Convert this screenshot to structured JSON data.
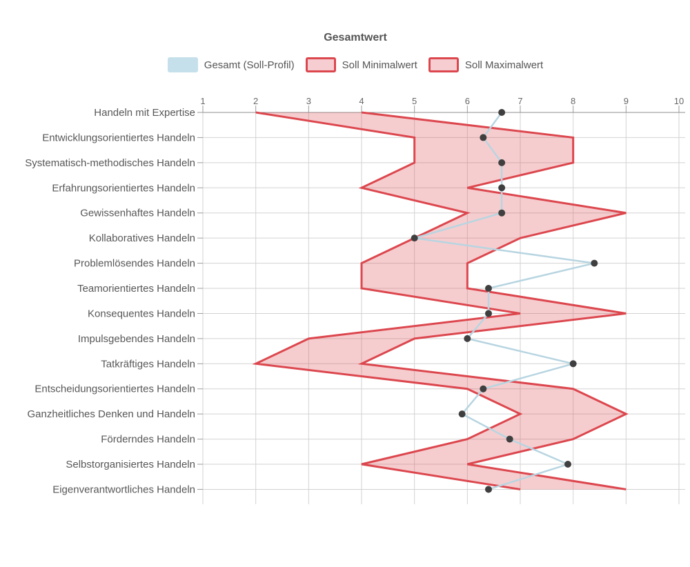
{
  "title": "Gesamtwert",
  "legend": {
    "position": "top",
    "items": [
      {
        "label": "Gesamt (Soll-Profil)",
        "swatch_fill": "#c5e0ea",
        "swatch_border": "none"
      },
      {
        "label": "Soll Minimalwert",
        "swatch_fill": "#f6ced2",
        "swatch_border": "#dc474e"
      },
      {
        "label": "Soll Maximalwert",
        "swatch_fill": "#f6ced2",
        "swatch_border": "#dc474e"
      }
    ]
  },
  "chart_data": {
    "type": "area",
    "subtype": "horizontal-range-band-with-line",
    "title": "Gesamtwert",
    "xlabel": "",
    "ylabel": "",
    "xlim": [
      1,
      10
    ],
    "x_ticks": [
      1,
      2,
      3,
      4,
      5,
      6,
      7,
      8,
      9,
      10
    ],
    "grid": true,
    "legend_position": "top",
    "categories": [
      "Handeln mit Expertise",
      "Entwicklungsorientiertes Handeln",
      "Systematisch-methodisches Handeln",
      "Erfahrungsorientiertes Handeln",
      "Gewissenhaftes Handeln",
      "Kollaboratives Handeln",
      "Problemlösendes Handeln",
      "Teamorientiertes Handeln",
      "Konsequentes Handeln",
      "Impulsgebendes Handeln",
      "Tatkräftiges Handeln",
      "Entscheidungsorientiertes Handeln",
      "Ganzheitliches Denken und Handeln",
      "Förderndes Handeln",
      "Selbstorganisiertes Handeln",
      "Eigenverantwortliches Handeln"
    ],
    "series": [
      {
        "name": "Gesamt (Soll-Profil)",
        "type": "line",
        "color": "#b7d5e1",
        "point_color": "#3f3f3f",
        "values": [
          6.65,
          6.3,
          6.65,
          6.65,
          6.65,
          5.0,
          8.4,
          6.4,
          6.4,
          6.0,
          8.0,
          6.3,
          5.9,
          6.8,
          7.9,
          6.4
        ]
      },
      {
        "name": "Soll Minimalwert",
        "type": "line",
        "color": "#dc474e",
        "values": [
          2,
          5,
          5,
          4,
          6,
          5,
          4,
          4,
          7,
          3,
          2,
          6,
          7,
          6,
          4,
          7
        ]
      },
      {
        "name": "Soll Maximalwert",
        "type": "line",
        "color": "#dc474e",
        "values": [
          4,
          8,
          8,
          6,
          9,
          7,
          6,
          6,
          9,
          5,
          4,
          8,
          9,
          8,
          6,
          9
        ]
      }
    ],
    "band_fill": "rgba(220,71,78,0.27)",
    "colors": {
      "grid": "#d2d2d2",
      "axis_line": "#8f8f8f",
      "tick": "#9a9a9a",
      "axis_text": "#666666",
      "category_text": "#575757"
    }
  }
}
